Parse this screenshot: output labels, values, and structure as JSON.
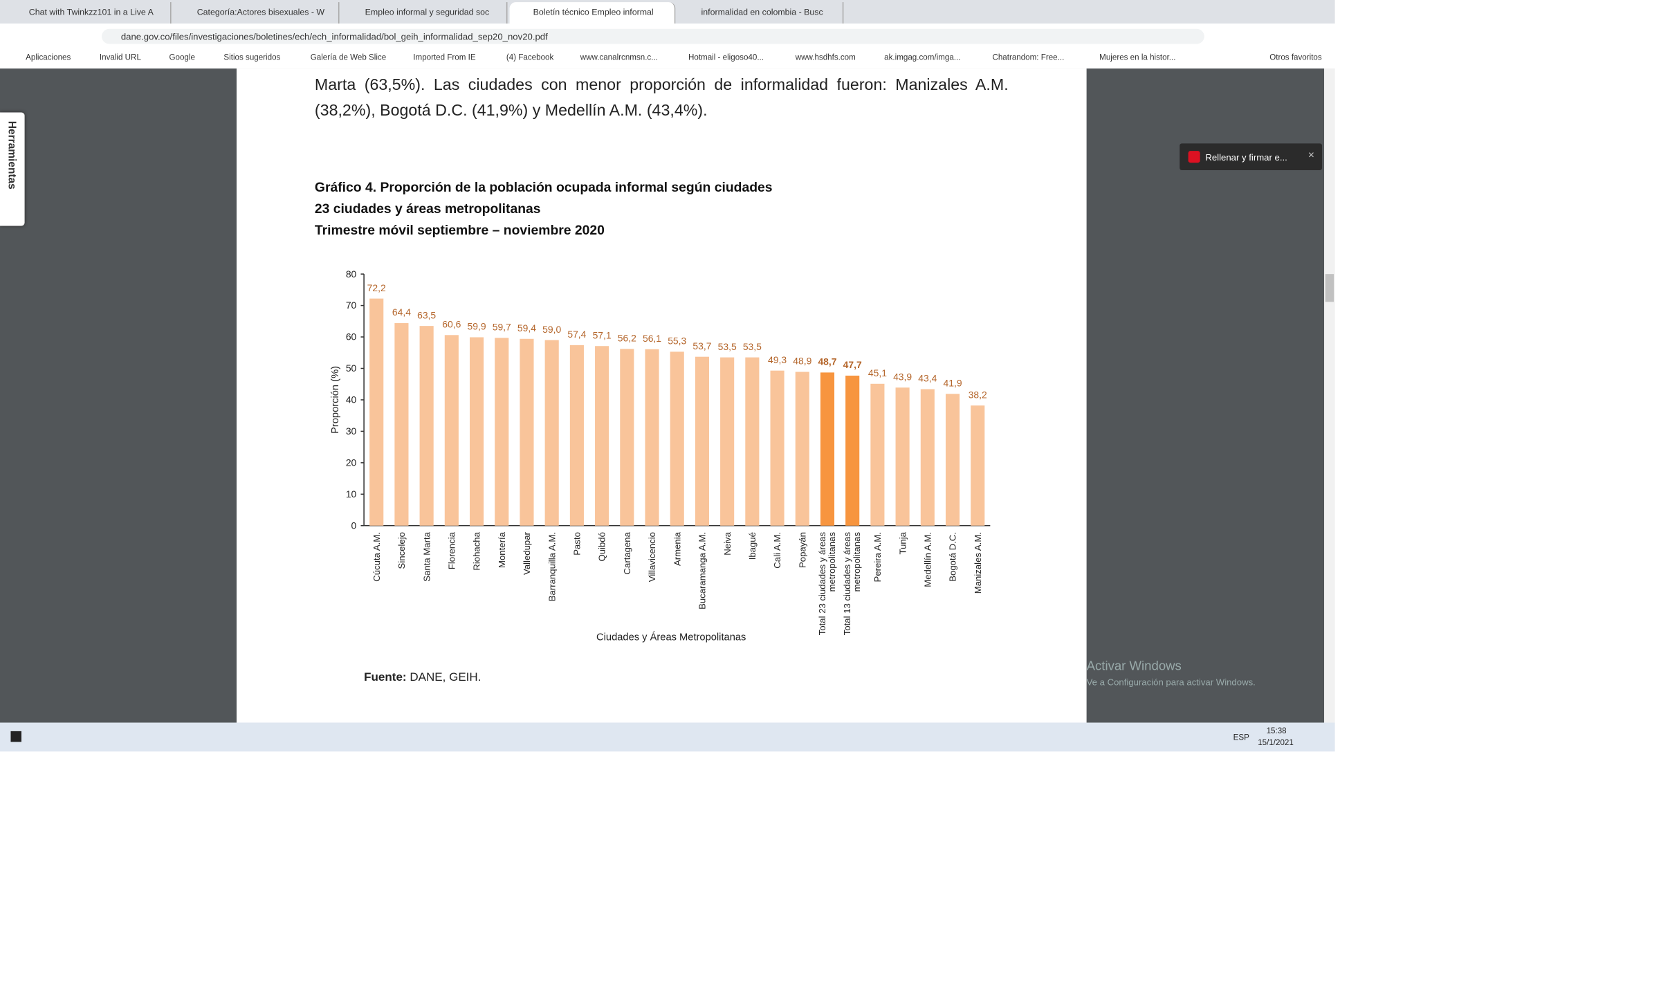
{
  "browser": {
    "tabs": [
      "Chat with Twinkzz101 in a Live A",
      "Categoría:Actores bisexuales - W",
      "Empleo informal y seguridad soc",
      "Boletín técnico Empleo informal",
      "informalidad en colombia - Busc"
    ],
    "url": "dane.gov.co/files/investigaciones/boletines/ech/ech_informalidad/bol_geih_informalidad_sep20_nov20.pdf",
    "bookmarks": [
      "Aplicaciones",
      "Invalid URL",
      "Google",
      "Sitios sugeridos",
      "Galería de Web Slice",
      "Imported From IE",
      "(4) Facebook",
      "www.canalrcnmsn.c...",
      "Hotmail - eligoso40...",
      "www.hsdhfs.com",
      "ak.imgag.com/imga...",
      "Chatrandom: Free...",
      "Mujeres en la histor..."
    ],
    "other_bookmarks": "Otros favoritos"
  },
  "viewer": {
    "tools": "Herramientas",
    "popup": "Rellenar y firmar e...",
    "watermark_title": "Activar Windows",
    "watermark_text": "Ve a Configuración para activar Windows."
  },
  "document": {
    "paragraph": [
      "Marta (63,5%). Las ciudades con menor proporción de informalidad fueron: Manizales A.M.",
      "(38,2%), Bogotá D.C. (41,9%) y Medellín A.M. (43,4%)."
    ],
    "source_label": "Fuente:",
    "source_text": "DANE, GEIH."
  },
  "chart_data": {
    "type": "bar",
    "title": [
      "Gráfico 4. Proporción de la población ocupada informal según ciudades",
      "23 ciudades y áreas metropolitanas",
      "Trimestre móvil septiembre – noviembre 2020"
    ],
    "ylabel": "Proporción (%)",
    "xlabel": "Ciudades y  Áreas Metropolitanas",
    "categories": [
      "Cúcuta A.M.",
      "Sincelejo",
      "Santa Marta",
      "Florencia",
      "Riohacha",
      "Montería",
      "Valledupar",
      "Barranquilla A.M.",
      "Pasto",
      "Quibdó",
      "Cartagena",
      "Villavicencio",
      "Armenia",
      "Bucaramanga A.M.",
      "Neiva",
      "Ibagué",
      "Cali A.M.",
      "Popayán",
      "Total 23 ciudades y áreas metropolitanas",
      "Total 13 ciudades y áreas metropolitanas",
      "Pereira A.M.",
      "Tunja",
      "Medellín A.M.",
      "Bogotá D.C.",
      "Manizales A.M."
    ],
    "values": [
      72.2,
      64.4,
      63.5,
      60.6,
      59.9,
      59.7,
      59.4,
      59.0,
      57.4,
      57.1,
      56.2,
      56.1,
      55.3,
      53.7,
      53.5,
      53.5,
      49.3,
      48.9,
      48.7,
      47.7,
      45.1,
      43.9,
      43.4,
      41.9,
      38.2
    ],
    "value_labels": [
      "72,2",
      "64,4",
      "63,5",
      "60,6",
      "59,9",
      "59,7",
      "59,4",
      "59,0",
      "57,4",
      "57,1",
      "56,2",
      "56,1",
      "55,3",
      "53,7",
      "53,5",
      "53,5",
      "49,3",
      "48,9",
      "48,7",
      "47,7",
      "45,1",
      "43,9",
      "43,4",
      "41,9",
      "38,2"
    ],
    "colors": [
      "#f9c49a",
      "#f9c49a",
      "#f9c49a",
      "#f9c49a",
      "#f9c49a",
      "#f9c49a",
      "#f9c49a",
      "#f9c49a",
      "#f9c49a",
      "#f9c49a",
      "#f9c49a",
      "#f9c49a",
      "#f9c49a",
      "#f9c49a",
      "#f9c49a",
      "#f9c49a",
      "#f9c49a",
      "#f9c49a",
      "#f7953f",
      "#f7953f",
      "#f9c49a",
      "#f9c49a",
      "#f9c49a",
      "#f9c49a",
      "#f9c49a"
    ],
    "label_color": "#b4652a",
    "ylim": [
      0,
      80
    ],
    "yticks": [
      0,
      10,
      20,
      30,
      40,
      50,
      60,
      70,
      80
    ],
    "grid": false
  },
  "taskbar": {
    "language": "ESP",
    "time": "15:38",
    "date": "15/1/2021"
  }
}
